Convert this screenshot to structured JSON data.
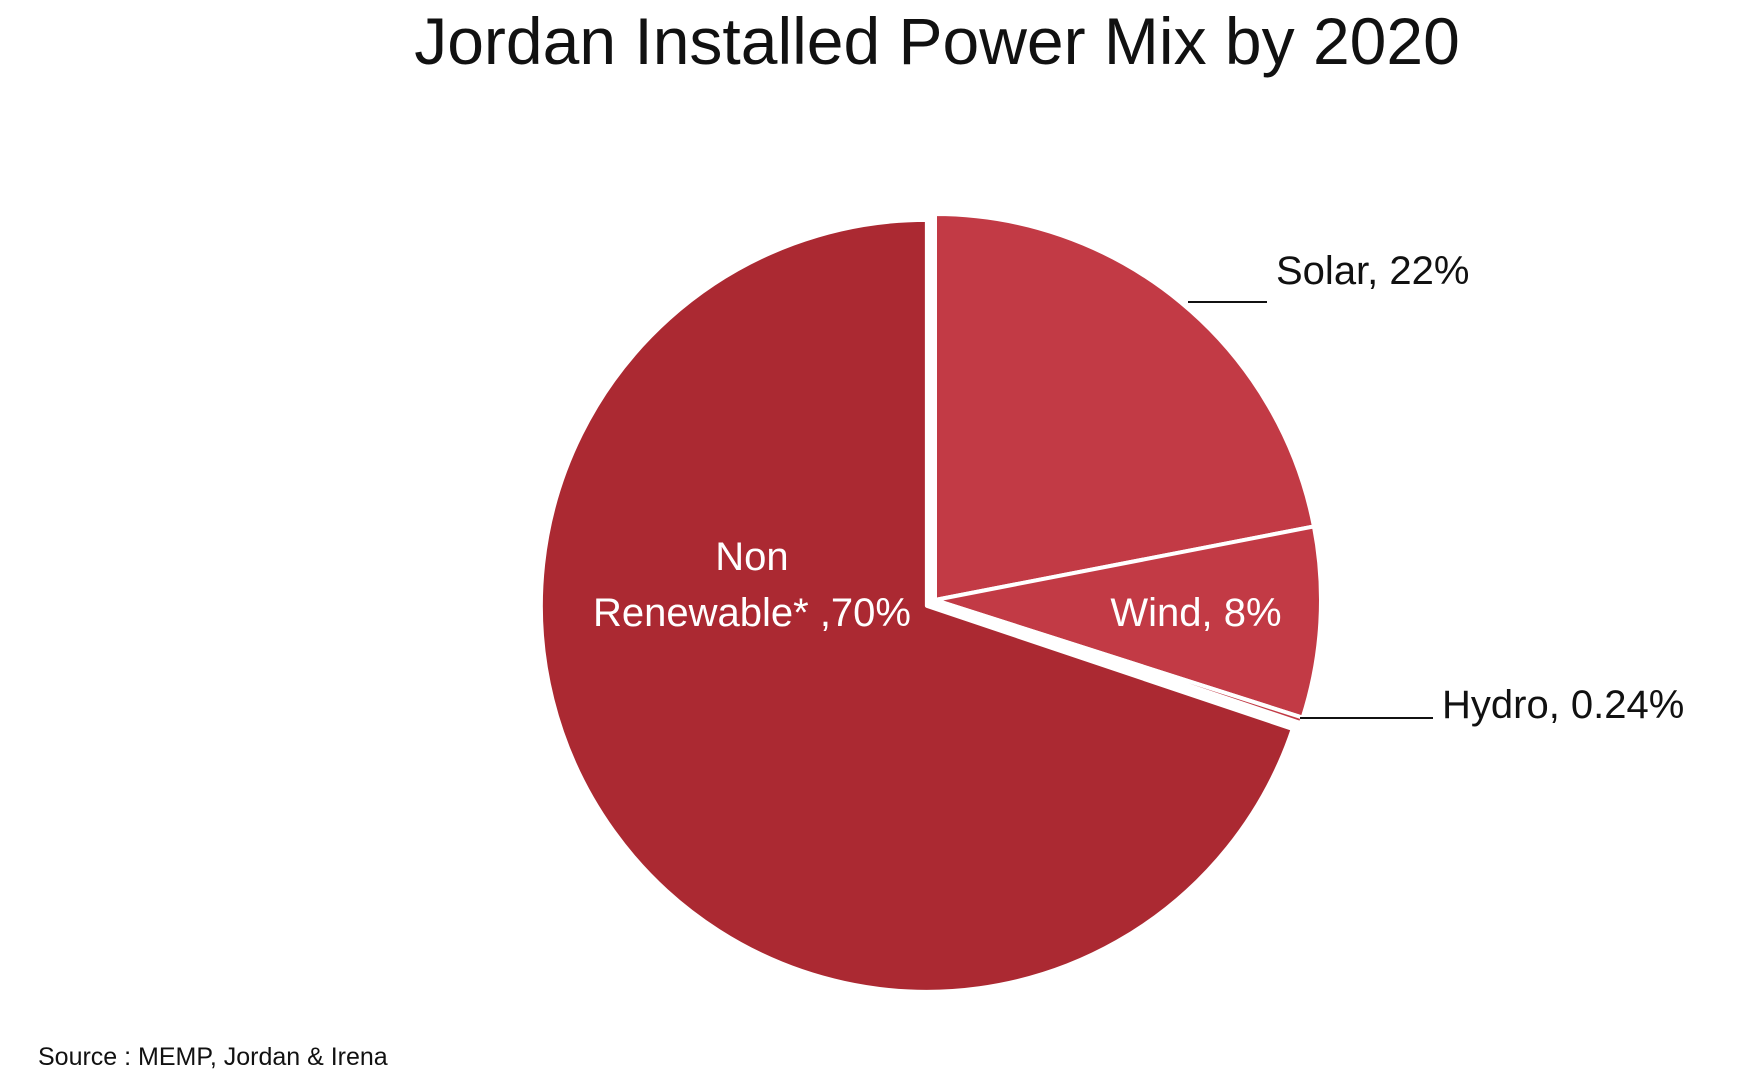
{
  "chart_data": {
    "type": "pie",
    "title": "Jordan Installed Power Mix by 2020",
    "slices": [
      {
        "label": "Solar",
        "value": 22,
        "display": "Solar, 22%",
        "color": "#c23a45",
        "label_lines": [
          "Solar, 22%"
        ]
      },
      {
        "label": "Wind",
        "value": 8,
        "display": "Wind, 8%",
        "color": "#c23a45",
        "label_lines": [
          "Wind, 8%"
        ]
      },
      {
        "label": "Hydro",
        "value": 0.24,
        "display": "Hydro, 0.24%",
        "color": "#c23a45",
        "label_lines": [
          "Hydro, 0.24%"
        ]
      },
      {
        "label": "Non Renewable*",
        "value": 70,
        "display": "Non Renewable* ,70%",
        "color": "#ab2932",
        "label_lines": [
          "Non",
          "Renewable* ,70%"
        ]
      }
    ],
    "legend": "none",
    "source": "Source : MEMP, Jordan & Irena"
  }
}
